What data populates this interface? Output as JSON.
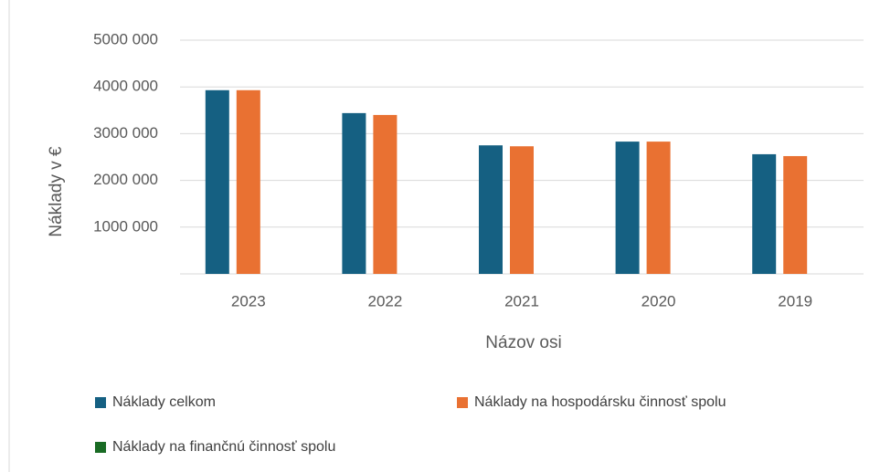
{
  "chart_data": {
    "type": "bar",
    "x_label": "Názov osi",
    "y_label": "Náklady v €",
    "categories": [
      "2023",
      "2022",
      "2021",
      "2020",
      "2019"
    ],
    "series": [
      {
        "name": "Náklady celkom",
        "color": "#156082",
        "values": [
          3930000,
          3440000,
          2750000,
          2830000,
          2560000
        ]
      },
      {
        "name": "Náklady na hospodársku činnosť spolu",
        "color": "#e97132",
        "values": [
          3930000,
          3400000,
          2730000,
          2830000,
          2520000
        ]
      },
      {
        "name": "Náklady na finančnú činnosť spolu",
        "color": "#196b24",
        "values": [
          0,
          0,
          0,
          0,
          0
        ]
      }
    ],
    "ylim": [
      0,
      5000000
    ],
    "yticks": [
      {
        "value": 1000000,
        "label": "1000 000"
      },
      {
        "value": 2000000,
        "label": "2000 000"
      },
      {
        "value": 3000000,
        "label": "3000 000"
      },
      {
        "value": 4000000,
        "label": "4000 000"
      },
      {
        "value": 5000000,
        "label": "5000 000"
      }
    ],
    "grid": true
  }
}
